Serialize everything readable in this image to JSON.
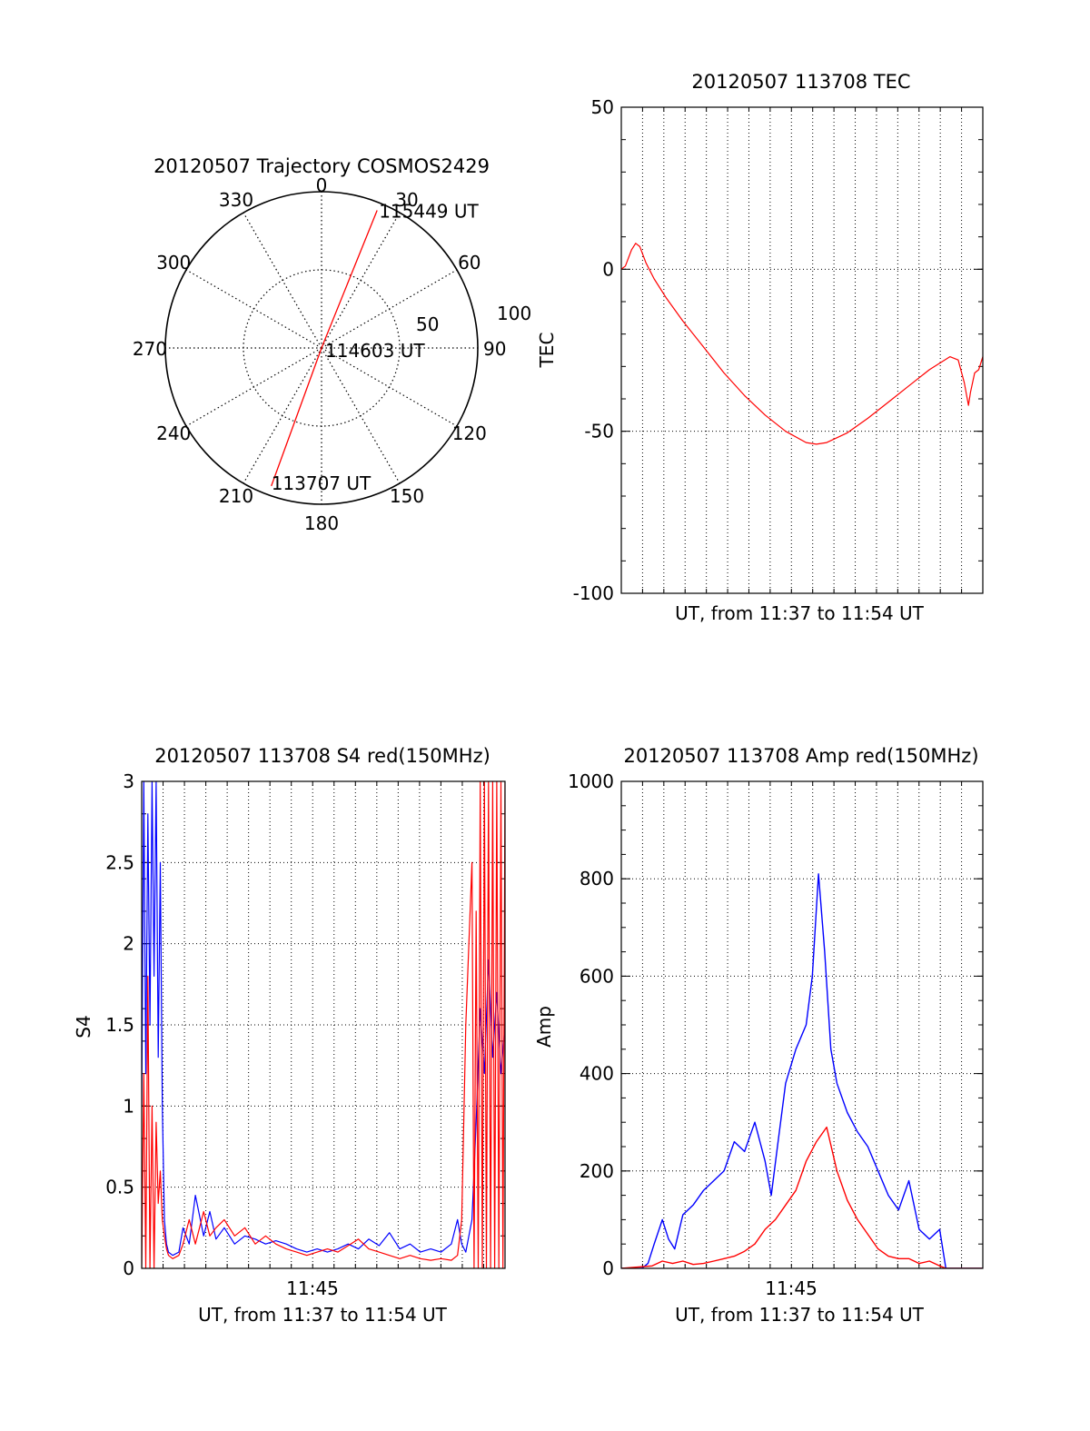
{
  "colors": {
    "red": "#ff0000",
    "blue": "#0000ff",
    "axis": "#000000",
    "grid": "#000000"
  },
  "chart_data": [
    {
      "id": "polar",
      "type": "scatter",
      "title": "20120507 Trajectory COSMOS2429",
      "azimuth_labels": [
        "0",
        "30",
        "60",
        "90",
        "120",
        "150",
        "180",
        "210",
        "240",
        "270",
        "300",
        "330"
      ],
      "radius_labels": [
        "50",
        "100"
      ],
      "grid": true,
      "series": [
        {
          "color": "red",
          "points": [
            {
              "az": 200,
              "zenith": 94
            },
            {
              "az": 0,
              "zenith": 0
            },
            {
              "az": 22,
              "zenith": 95
            }
          ]
        }
      ],
      "annotations": [
        {
          "text": "115449 UT",
          "az": 22,
          "zenith": 95
        },
        {
          "text": "114603 UT",
          "az": 0,
          "zenith": 0
        },
        {
          "text": "113707 UT",
          "az": 200,
          "zenith": 94
        }
      ]
    },
    {
      "id": "tec",
      "type": "line",
      "title": "20120507 113708 TEC",
      "xlabel": "UT, from 11:37 to 11:54 UT",
      "ylabel": "TEC",
      "xlim": [
        0,
        17.6
      ],
      "ylim": [
        -100,
        50
      ],
      "yticks": [
        "50",
        "0",
        "-50",
        "-100"
      ],
      "grid": true,
      "series": [
        {
          "color": "red",
          "x": [
            0.0,
            0.2,
            0.5,
            0.7,
            0.9,
            1.2,
            1.6,
            2.2,
            3.0,
            4.0,
            5.0,
            6.0,
            7.0,
            8.0,
            9.0,
            9.5,
            10.0,
            11.0,
            12.0,
            13.0,
            14.0,
            15.0,
            16.0,
            16.4,
            16.7,
            16.9,
            17.0,
            17.2,
            17.4,
            17.6
          ],
          "y": [
            0,
            1,
            6,
            8,
            7,
            2,
            -3,
            -9,
            -16,
            -24,
            -32,
            -39,
            -45,
            -50,
            -53.5,
            -54,
            -53.5,
            -50.5,
            -46,
            -41,
            -36,
            -31,
            -27,
            -28,
            -35,
            -42,
            -38,
            -32,
            -31,
            -27
          ]
        }
      ]
    },
    {
      "id": "s4",
      "type": "line",
      "title": "20120507 113708 S4 red(150MHz)",
      "xlabel": "UT, from 11:37 to 11:54 UT",
      "ylabel": "S4",
      "xlim": [
        0,
        17.6
      ],
      "ylim": [
        0,
        3
      ],
      "xticks": [
        "11:45"
      ],
      "yticks": [
        "0",
        "0.5",
        "1",
        "1.5",
        "2",
        "2.5",
        "3"
      ],
      "grid": true,
      "series": [
        {
          "color": "blue",
          "x": [
            0.0,
            0.1,
            0.2,
            0.3,
            0.4,
            0.5,
            0.6,
            0.7,
            0.8,
            0.9,
            1.0,
            1.1,
            1.2,
            1.3,
            1.5,
            1.8,
            2.0,
            2.3,
            2.6,
            3.0,
            3.3,
            3.6,
            4.0,
            4.5,
            5.0,
            5.5,
            6.0,
            6.5,
            7.0,
            7.5,
            8.0,
            8.5,
            9.0,
            9.5,
            10.0,
            10.5,
            11.0,
            11.5,
            12.0,
            12.5,
            13.0,
            13.5,
            14.0,
            14.5,
            15.0,
            15.3,
            15.5,
            15.7,
            16.0,
            16.2,
            16.4,
            16.6,
            16.8,
            17.0,
            17.2,
            17.4,
            17.6
          ],
          "y": [
            1.0,
            3.0,
            1.2,
            2.8,
            1.5,
            3.0,
            1.8,
            3.0,
            1.3,
            2.5,
            1.0,
            0.3,
            0.15,
            0.1,
            0.08,
            0.1,
            0.25,
            0.15,
            0.45,
            0.2,
            0.35,
            0.18,
            0.25,
            0.15,
            0.2,
            0.18,
            0.15,
            0.17,
            0.15,
            0.12,
            0.1,
            0.12,
            0.1,
            0.12,
            0.15,
            0.12,
            0.18,
            0.14,
            0.22,
            0.12,
            0.15,
            0.1,
            0.12,
            0.1,
            0.15,
            0.3,
            0.15,
            0.1,
            0.3,
            0.9,
            1.6,
            1.2,
            1.9,
            1.3,
            1.7,
            1.2,
            1.5
          ]
        },
        {
          "color": "red",
          "x": [
            0.0,
            0.1,
            0.2,
            0.3,
            0.4,
            0.5,
            0.6,
            0.7,
            0.8,
            0.9,
            1.0,
            1.1,
            1.2,
            1.3,
            1.5,
            1.8,
            2.0,
            2.3,
            2.6,
            3.0,
            3.3,
            3.6,
            4.0,
            4.5,
            5.0,
            5.5,
            6.0,
            6.5,
            7.0,
            7.5,
            8.0,
            8.5,
            9.0,
            9.5,
            10.0,
            10.5,
            11.0,
            11.5,
            12.0,
            12.5,
            13.0,
            13.5,
            14.0,
            14.5,
            15.0,
            15.3,
            15.5,
            15.7,
            16.0,
            16.1,
            16.2,
            16.3,
            16.4,
            16.5,
            16.6,
            16.7,
            16.8,
            16.9,
            17.0,
            17.1,
            17.2,
            17.3,
            17.4,
            17.5,
            17.6
          ],
          "y": [
            0.0,
            1.2,
            0.0,
            1.8,
            0.0,
            1.0,
            0.0,
            0.9,
            0.4,
            0.6,
            0.3,
            0.2,
            0.12,
            0.08,
            0.06,
            0.08,
            0.15,
            0.3,
            0.15,
            0.35,
            0.2,
            0.25,
            0.3,
            0.2,
            0.25,
            0.15,
            0.2,
            0.15,
            0.12,
            0.1,
            0.08,
            0.1,
            0.12,
            0.1,
            0.14,
            0.18,
            0.12,
            0.1,
            0.08,
            0.06,
            0.08,
            0.06,
            0.05,
            0.06,
            0.05,
            0.08,
            0.3,
            1.5,
            2.5,
            0.0,
            2.2,
            0.0,
            3.0,
            0.0,
            3.0,
            0.0,
            3.0,
            0.0,
            3.0,
            0.0,
            3.0,
            0.0,
            3.0,
            0.0,
            3.0
          ]
        }
      ]
    },
    {
      "id": "amp",
      "type": "line",
      "title": "20120507 113708 Amp red(150MHz)",
      "xlabel": "UT, from 11:37 to 11:54 UT",
      "ylabel": "Amp",
      "xlim": [
        0,
        17.6
      ],
      "ylim": [
        0,
        1000
      ],
      "xticks": [
        "11:45"
      ],
      "yticks": [
        "0",
        "200",
        "400",
        "600",
        "800",
        "1000"
      ],
      "grid": true,
      "series": [
        {
          "color": "blue",
          "x": [
            0.0,
            1.0,
            1.3,
            1.6,
            2.0,
            2.3,
            2.6,
            3.0,
            3.5,
            4.0,
            4.5,
            5.0,
            5.5,
            6.0,
            6.5,
            7.0,
            7.3,
            7.6,
            8.0,
            8.5,
            9.0,
            9.3,
            9.6,
            9.9,
            10.2,
            10.5,
            11.0,
            11.5,
            12.0,
            12.5,
            13.0,
            13.5,
            14.0,
            14.5,
            15.0,
            15.5,
            15.8,
            16.2,
            17.6
          ],
          "y": [
            0,
            0,
            10,
            50,
            100,
            60,
            40,
            110,
            130,
            160,
            180,
            200,
            260,
            240,
            300,
            220,
            150,
            250,
            380,
            450,
            500,
            600,
            810,
            650,
            450,
            380,
            320,
            280,
            250,
            200,
            150,
            120,
            180,
            80,
            60,
            80,
            0,
            0,
            0
          ]
        },
        {
          "color": "red",
          "x": [
            0.0,
            1.5,
            2.0,
            2.5,
            3.0,
            3.5,
            4.0,
            4.5,
            5.0,
            5.5,
            6.0,
            6.5,
            7.0,
            7.5,
            8.0,
            8.5,
            9.0,
            9.5,
            10.0,
            10.5,
            11.0,
            11.5,
            12.0,
            12.5,
            13.0,
            13.5,
            14.0,
            14.5,
            15.0,
            15.5,
            15.8,
            16.2,
            17.6
          ],
          "y": [
            0,
            5,
            15,
            10,
            15,
            8,
            10,
            15,
            20,
            25,
            35,
            50,
            80,
            100,
            130,
            160,
            220,
            260,
            290,
            200,
            140,
            100,
            70,
            40,
            25,
            20,
            20,
            10,
            15,
            5,
            0,
            0,
            0
          ]
        }
      ]
    }
  ]
}
